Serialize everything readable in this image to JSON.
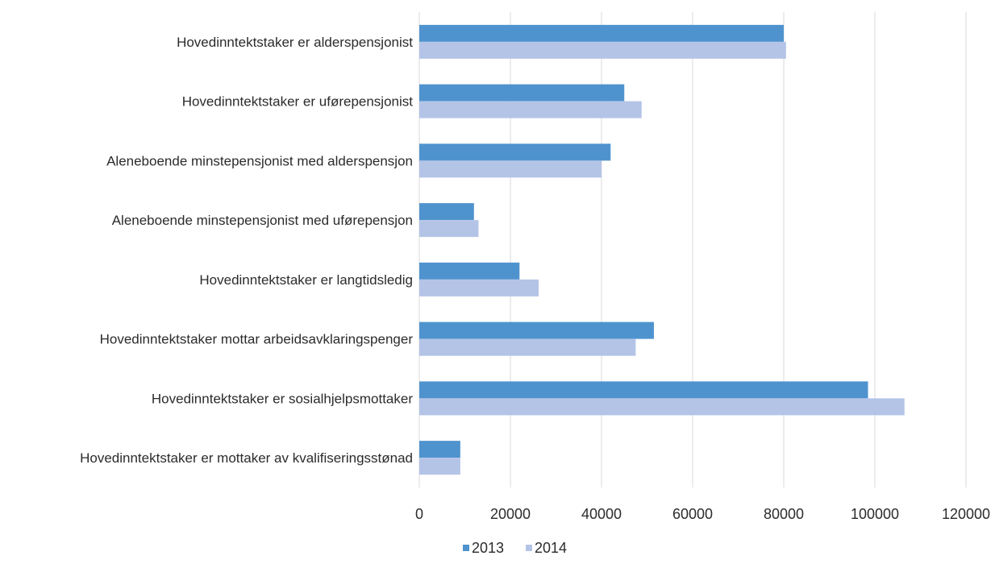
{
  "chart_data": {
    "type": "bar",
    "orientation": "horizontal",
    "title": "",
    "xlabel": "",
    "ylabel": "",
    "xlim": [
      0,
      120000
    ],
    "x_ticks": [
      0,
      20000,
      40000,
      60000,
      80000,
      100000,
      120000
    ],
    "x_tick_labels": [
      "0",
      "20000",
      "40000",
      "60000",
      "80000",
      "100000",
      "120000"
    ],
    "grid": "vertical",
    "legend_position": "bottom",
    "categories": [
      "Hovedinntektstaker er alderspensjonist",
      "Hovedinntektstaker er uførepensjonist",
      "Aleneboende minstepensjonist med alderspensjon",
      "Aleneboende minstepensjonist med uførepensjon",
      "Hovedinntektstaker er langtidsledig",
      "Hovedinntektstaker mottar arbeidsavklaringspenger",
      "Hovedinntektstaker er sosialhjelpsmottaker",
      "Hovedinntektstaker er mottaker av kvalifiseringsstønad"
    ],
    "series": [
      {
        "name": "2013",
        "color": "#4f93ce",
        "values": [
          80000,
          45000,
          42000,
          12000,
          22000,
          51500,
          98500,
          9000
        ]
      },
      {
        "name": "2014",
        "color": "#b4c4e7",
        "values": [
          80500,
          48800,
          40000,
          13000,
          26200,
          47500,
          106500,
          9000
        ]
      }
    ]
  }
}
